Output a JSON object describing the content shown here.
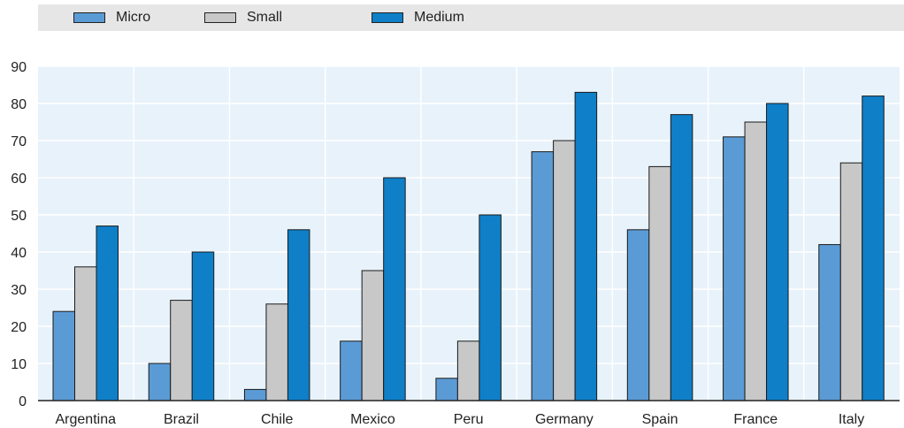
{
  "chart_data": {
    "type": "bar",
    "categories": [
      "Argentina",
      "Brazil",
      "Chile",
      "Mexico",
      "Peru",
      "Germany",
      "Spain",
      "France",
      "Italy"
    ],
    "series": [
      {
        "name": "Micro",
        "color": "#5b9bd5",
        "values": [
          24,
          10,
          3,
          16,
          6,
          67,
          46,
          71,
          42
        ]
      },
      {
        "name": "Small",
        "color": "#c8c8c8",
        "values": [
          36,
          27,
          26,
          35,
          16,
          70,
          63,
          75,
          64
        ]
      },
      {
        "name": "Medium",
        "color": "#0f7fc8",
        "values": [
          47,
          40,
          46,
          60,
          50,
          83,
          77,
          80,
          82
        ]
      }
    ],
    "yticks": [
      "0",
      "10",
      "20",
      "30",
      "40",
      "50",
      "60",
      "70",
      "80",
      "90"
    ],
    "ylim": [
      0,
      90
    ],
    "grid": true,
    "legend": "top",
    "plot_background": "#e8f2fa"
  }
}
